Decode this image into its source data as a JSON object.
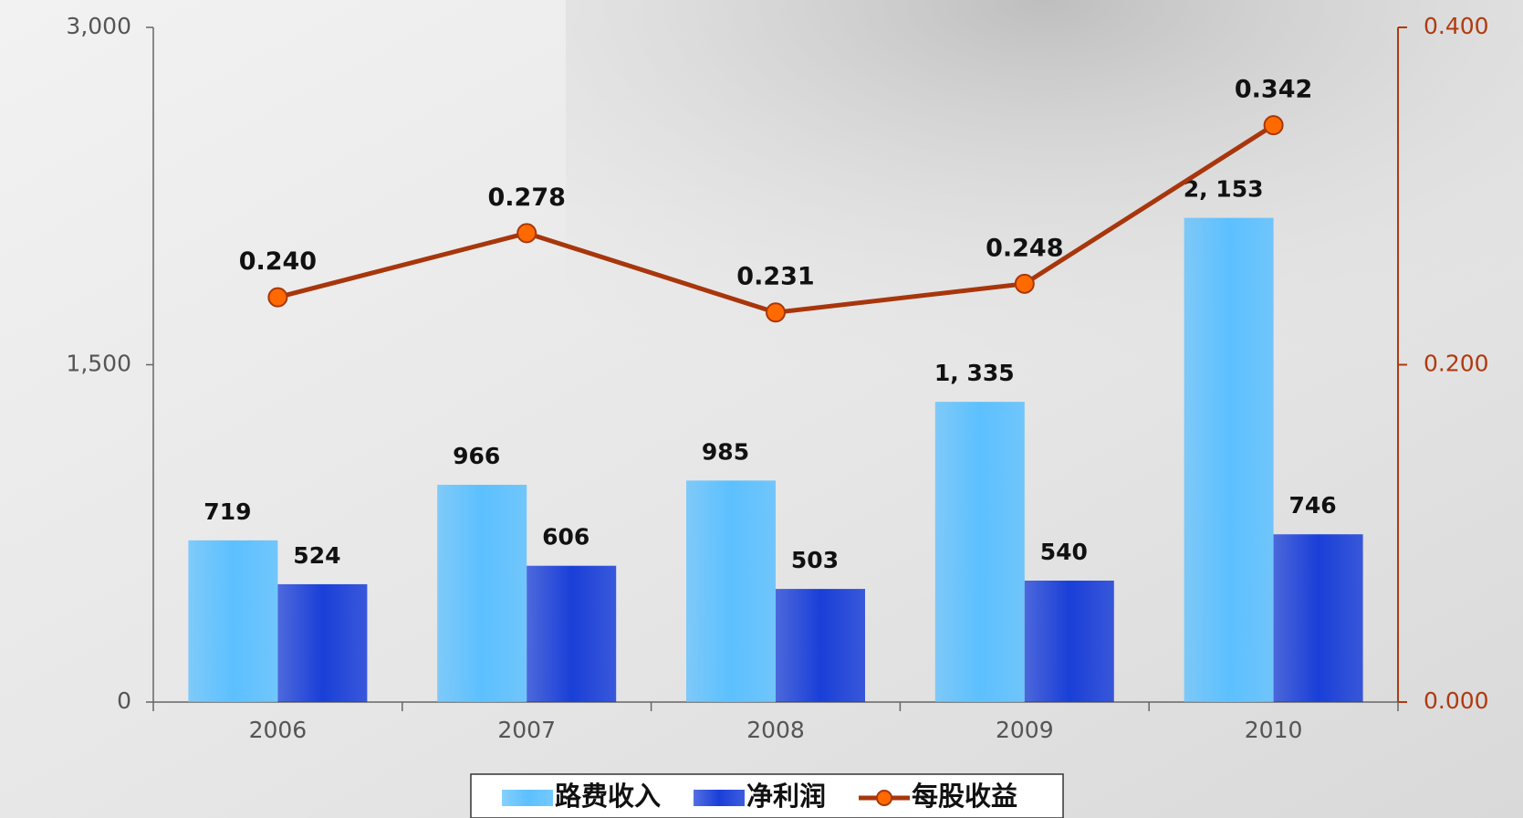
{
  "chart_data": {
    "type": "bar",
    "categories": [
      "2006",
      "2007",
      "2008",
      "2009",
      "2010"
    ],
    "series": [
      {
        "name": "路费收入",
        "type": "bar",
        "color": "#5cc0ff",
        "values": [
          719,
          966,
          985,
          1335,
          2153
        ],
        "value_labels": [
          "719",
          "966",
          "985",
          "1, 335",
          "2, 153"
        ]
      },
      {
        "name": "净利润",
        "type": "bar",
        "color": "#1a3fd8",
        "values": [
          524,
          606,
          503,
          540,
          746
        ]
      },
      {
        "name": "每股收益",
        "type": "line",
        "axis": "y2",
        "color": "#a8360c",
        "marker_color": "#ff6a00",
        "values": [
          0.24,
          0.278,
          0.231,
          0.248,
          0.342
        ],
        "value_labels": [
          "0.240",
          "0.278",
          "0.231",
          "0.248",
          "0.342"
        ]
      }
    ],
    "ylim": [
      0,
      3000
    ],
    "yticks": [
      0,
      {
        "value": 1500,
        "label": "1,500"
      },
      {
        "value": 3000,
        "label": "3,000"
      }
    ],
    "y2lim": [
      0,
      0.4
    ],
    "y2ticks": [
      {
        "value": 0,
        "label": "0.000"
      },
      {
        "value": 0.2,
        "label": "0.200"
      },
      {
        "value": 0.4,
        "label": "0.400"
      }
    ],
    "legend": "bottom"
  }
}
